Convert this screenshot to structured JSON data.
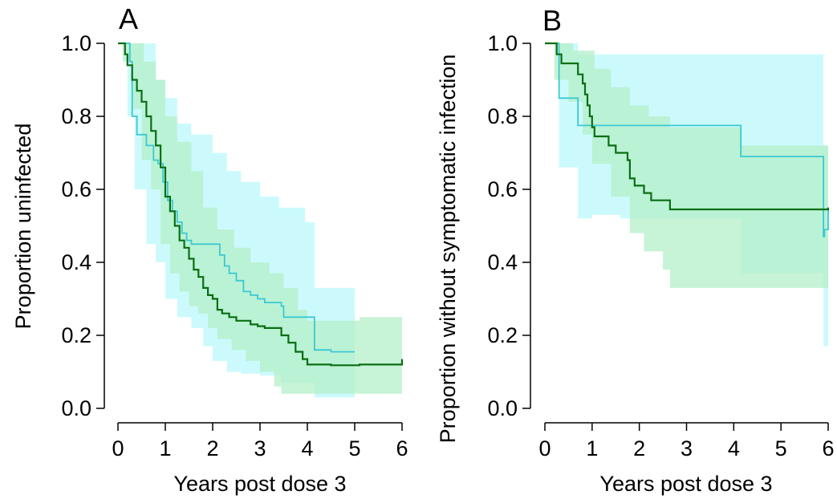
{
  "chart_data": [
    {
      "type": "line",
      "panel_label": "A",
      "xlabel": "Years post dose 3",
      "ylabel": "Proportion uninfected",
      "xlim": [
        0,
        6
      ],
      "ylim": [
        0,
        1
      ],
      "xticks": [
        "0",
        "1",
        "2",
        "3",
        "4",
        "5",
        "6"
      ],
      "yticks": [
        "0.0",
        "0.2",
        "0.4",
        "0.6",
        "0.8",
        "1.0"
      ],
      "grid": false,
      "legend": "none",
      "series": [
        {
          "color": "#3cc8d2",
          "band_color": "#c6fafc",
          "step_points": [
            [
              0,
              1.0
            ],
            [
              0.15,
              1.0
            ],
            [
              0.25,
              0.95
            ],
            [
              0.3,
              0.8
            ],
            [
              0.4,
              0.75
            ],
            [
              0.55,
              0.75
            ],
            [
              0.6,
              0.72
            ],
            [
              0.75,
              0.68
            ],
            [
              0.85,
              0.67
            ],
            [
              0.95,
              0.62
            ],
            [
              1.05,
              0.57
            ],
            [
              1.15,
              0.54
            ],
            [
              1.25,
              0.51
            ],
            [
              1.35,
              0.48
            ],
            [
              1.45,
              0.46
            ],
            [
              1.55,
              0.45
            ],
            [
              2.05,
              0.45
            ],
            [
              2.15,
              0.42
            ],
            [
              2.25,
              0.39
            ],
            [
              2.35,
              0.37
            ],
            [
              2.5,
              0.35
            ],
            [
              2.65,
              0.32
            ],
            [
              2.8,
              0.31
            ],
            [
              2.95,
              0.3
            ],
            [
              3.1,
              0.29
            ],
            [
              3.45,
              0.28
            ],
            [
              3.5,
              0.25
            ],
            [
              4.15,
              0.25
            ],
            [
              4.15,
              0.16
            ],
            [
              4.3,
              0.16
            ],
            [
              4.5,
              0.155
            ],
            [
              5.0,
              0.155
            ]
          ],
          "ci_upper": [
            [
              0,
              1.0
            ],
            [
              0.35,
              1.0
            ],
            [
              0.8,
              0.9
            ],
            [
              1.0,
              0.85
            ],
            [
              1.25,
              0.78
            ],
            [
              1.55,
              0.75
            ],
            [
              2.0,
              0.7
            ],
            [
              2.3,
              0.65
            ],
            [
              2.6,
              0.62
            ],
            [
              3.0,
              0.58
            ],
            [
              3.4,
              0.55
            ],
            [
              3.95,
              0.51
            ],
            [
              4.15,
              0.33
            ],
            [
              5.0,
              0.33
            ]
          ],
          "ci_lower": [
            [
              0,
              1.0
            ],
            [
              0.2,
              0.8
            ],
            [
              0.35,
              0.6
            ],
            [
              0.6,
              0.45
            ],
            [
              0.8,
              0.4
            ],
            [
              1.0,
              0.3
            ],
            [
              1.25,
              0.25
            ],
            [
              1.55,
              0.22
            ],
            [
              1.8,
              0.17
            ],
            [
              2.0,
              0.13
            ],
            [
              2.3,
              0.1
            ],
            [
              2.6,
              0.095
            ],
            [
              3.0,
              0.09
            ],
            [
              3.45,
              0.07
            ],
            [
              4.15,
              0.03
            ],
            [
              5.0,
              0.03
            ]
          ]
        },
        {
          "color": "#0a6e14",
          "band_color": "#b4efc8",
          "step_points": [
            [
              0,
              1.0
            ],
            [
              0.1,
              1.0
            ],
            [
              0.15,
              0.97
            ],
            [
              0.2,
              0.94
            ],
            [
              0.3,
              0.9
            ],
            [
              0.4,
              0.87
            ],
            [
              0.5,
              0.84
            ],
            [
              0.6,
              0.8
            ],
            [
              0.7,
              0.76
            ],
            [
              0.8,
              0.72
            ],
            [
              0.9,
              0.66
            ],
            [
              1.0,
              0.58
            ],
            [
              1.1,
              0.54
            ],
            [
              1.2,
              0.5
            ],
            [
              1.3,
              0.46
            ],
            [
              1.4,
              0.44
            ],
            [
              1.5,
              0.41
            ],
            [
              1.6,
              0.38
            ],
            [
              1.7,
              0.36
            ],
            [
              1.8,
              0.33
            ],
            [
              1.9,
              0.31
            ],
            [
              2.0,
              0.3
            ],
            [
              2.1,
              0.27
            ],
            [
              2.2,
              0.26
            ],
            [
              2.35,
              0.25
            ],
            [
              2.5,
              0.24
            ],
            [
              2.8,
              0.23
            ],
            [
              2.95,
              0.225
            ],
            [
              3.1,
              0.22
            ],
            [
              3.3,
              0.22
            ],
            [
              3.45,
              0.2
            ],
            [
              3.6,
              0.18
            ],
            [
              3.75,
              0.155
            ],
            [
              3.9,
              0.135
            ],
            [
              4.0,
              0.12
            ],
            [
              4.5,
              0.118
            ],
            [
              5.0,
              0.118
            ],
            [
              5.1,
              0.12
            ],
            [
              5.4,
              0.12
            ],
            [
              6.0,
              0.12
            ],
            [
              6.0,
              0.135
            ]
          ],
          "ci_upper": [
            [
              0,
              1.0
            ],
            [
              0.35,
              1.0
            ],
            [
              0.55,
              0.95
            ],
            [
              0.8,
              0.9
            ],
            [
              1.0,
              0.8
            ],
            [
              1.25,
              0.73
            ],
            [
              1.55,
              0.65
            ],
            [
              1.8,
              0.55
            ],
            [
              2.1,
              0.49
            ],
            [
              2.45,
              0.44
            ],
            [
              2.8,
              0.4
            ],
            [
              3.2,
              0.37
            ],
            [
              3.5,
              0.33
            ],
            [
              3.8,
              0.27
            ],
            [
              4.0,
              0.24
            ],
            [
              4.6,
              0.24
            ],
            [
              5.0,
              0.24
            ],
            [
              5.1,
              0.25
            ],
            [
              6.0,
              0.25
            ]
          ],
          "ci_lower": [
            [
              0,
              1.0
            ],
            [
              0.1,
              0.95
            ],
            [
              0.3,
              0.82
            ],
            [
              0.5,
              0.68
            ],
            [
              0.7,
              0.6
            ],
            [
              0.9,
              0.45
            ],
            [
              1.1,
              0.37
            ],
            [
              1.3,
              0.32
            ],
            [
              1.5,
              0.28
            ],
            [
              1.7,
              0.26
            ],
            [
              1.9,
              0.22
            ],
            [
              2.1,
              0.19
            ],
            [
              2.4,
              0.16
            ],
            [
              2.7,
              0.13
            ],
            [
              3.0,
              0.1
            ],
            [
              3.3,
              0.06
            ],
            [
              3.45,
              0.04
            ],
            [
              4.0,
              0.04
            ],
            [
              5.0,
              0.04
            ],
            [
              6.0,
              0.04
            ]
          ]
        }
      ]
    },
    {
      "type": "line",
      "panel_label": "B",
      "xlabel": "Years post dose 3",
      "ylabel": "Proportion without symptomatic infection",
      "xlim": [
        0,
        6
      ],
      "ylim": [
        0,
        1
      ],
      "xticks": [
        "0",
        "1",
        "2",
        "3",
        "4",
        "5",
        "6"
      ],
      "yticks": [
        "0.0",
        "0.2",
        "0.4",
        "0.6",
        "0.8",
        "1.0"
      ],
      "grid": false,
      "legend": "none",
      "series": [
        {
          "color": "#3cc8d2",
          "band_color": "#c6fafc",
          "step_points": [
            [
              0,
              1.0
            ],
            [
              0.3,
              1.0
            ],
            [
              0.3,
              0.85
            ],
            [
              0.7,
              0.85
            ],
            [
              0.7,
              0.775
            ],
            [
              4.15,
              0.775
            ],
            [
              4.15,
              0.69
            ],
            [
              5.9,
              0.69
            ],
            [
              5.9,
              0.47
            ],
            [
              5.92,
              0.47
            ],
            [
              5.92,
              0.49
            ],
            [
              6.0,
              0.49
            ],
            [
              6.0,
              0.55
            ]
          ],
          "ci_upper": [
            [
              0,
              1.0
            ],
            [
              0.7,
              1.0
            ],
            [
              0.7,
              0.97
            ],
            [
              5.9,
              0.965
            ],
            [
              5.9,
              0.72
            ],
            [
              6.0,
              0.72
            ]
          ],
          "ci_lower": [
            [
              0,
              1.0
            ],
            [
              0.3,
              0.66
            ],
            [
              0.7,
              0.52
            ],
            [
              1.0,
              0.52
            ],
            [
              1.0,
              0.53
            ],
            [
              1.6,
              0.53
            ],
            [
              1.6,
              0.52
            ],
            [
              4.15,
              0.52
            ],
            [
              4.15,
              0.37
            ],
            [
              5.9,
              0.37
            ],
            [
              5.9,
              0.17
            ],
            [
              6.0,
              0.17
            ]
          ]
        },
        {
          "color": "#0a6e14",
          "band_color": "#b4efc8",
          "step_points": [
            [
              0,
              1.0
            ],
            [
              0.25,
              1.0
            ],
            [
              0.25,
              0.97
            ],
            [
              0.35,
              0.97
            ],
            [
              0.35,
              0.945
            ],
            [
              0.7,
              0.945
            ],
            [
              0.7,
              0.915
            ],
            [
              0.8,
              0.915
            ],
            [
              0.8,
              0.89
            ],
            [
              0.85,
              0.89
            ],
            [
              0.85,
              0.86
            ],
            [
              0.9,
              0.86
            ],
            [
              0.9,
              0.83
            ],
            [
              0.95,
              0.83
            ],
            [
              0.95,
              0.8
            ],
            [
              1.0,
              0.8
            ],
            [
              1.0,
              0.77
            ],
            [
              1.05,
              0.77
            ],
            [
              1.05,
              0.745
            ],
            [
              1.35,
              0.745
            ],
            [
              1.35,
              0.72
            ],
            [
              1.5,
              0.72
            ],
            [
              1.5,
              0.7
            ],
            [
              1.75,
              0.7
            ],
            [
              1.75,
              0.68
            ],
            [
              1.8,
              0.68
            ],
            [
              1.8,
              0.63
            ],
            [
              1.9,
              0.63
            ],
            [
              1.9,
              0.61
            ],
            [
              2.1,
              0.61
            ],
            [
              2.1,
              0.59
            ],
            [
              2.25,
              0.59
            ],
            [
              2.25,
              0.57
            ],
            [
              2.65,
              0.57
            ],
            [
              2.65,
              0.545
            ],
            [
              6.0,
              0.55
            ]
          ],
          "ci_upper": [
            [
              0,
              1.0
            ],
            [
              0.6,
              1.0
            ],
            [
              0.6,
              0.98
            ],
            [
              0.9,
              0.98
            ],
            [
              1.05,
              0.93
            ],
            [
              1.4,
              0.88
            ],
            [
              1.8,
              0.83
            ],
            [
              2.2,
              0.8
            ],
            [
              2.65,
              0.8
            ],
            [
              2.65,
              0.77
            ],
            [
              4.15,
              0.77
            ],
            [
              4.15,
              0.72
            ],
            [
              6.0,
              0.72
            ]
          ],
          "ci_lower": [
            [
              0,
              1.0
            ],
            [
              0.2,
              0.9
            ],
            [
              0.5,
              0.84
            ],
            [
              0.8,
              0.75
            ],
            [
              1.0,
              0.67
            ],
            [
              1.4,
              0.58
            ],
            [
              1.8,
              0.52
            ],
            [
              1.8,
              0.48
            ],
            [
              2.1,
              0.43
            ],
            [
              2.5,
              0.38
            ],
            [
              2.65,
              0.33
            ],
            [
              4.15,
              0.33
            ],
            [
              6.0,
              0.34
            ]
          ]
        }
      ]
    }
  ]
}
